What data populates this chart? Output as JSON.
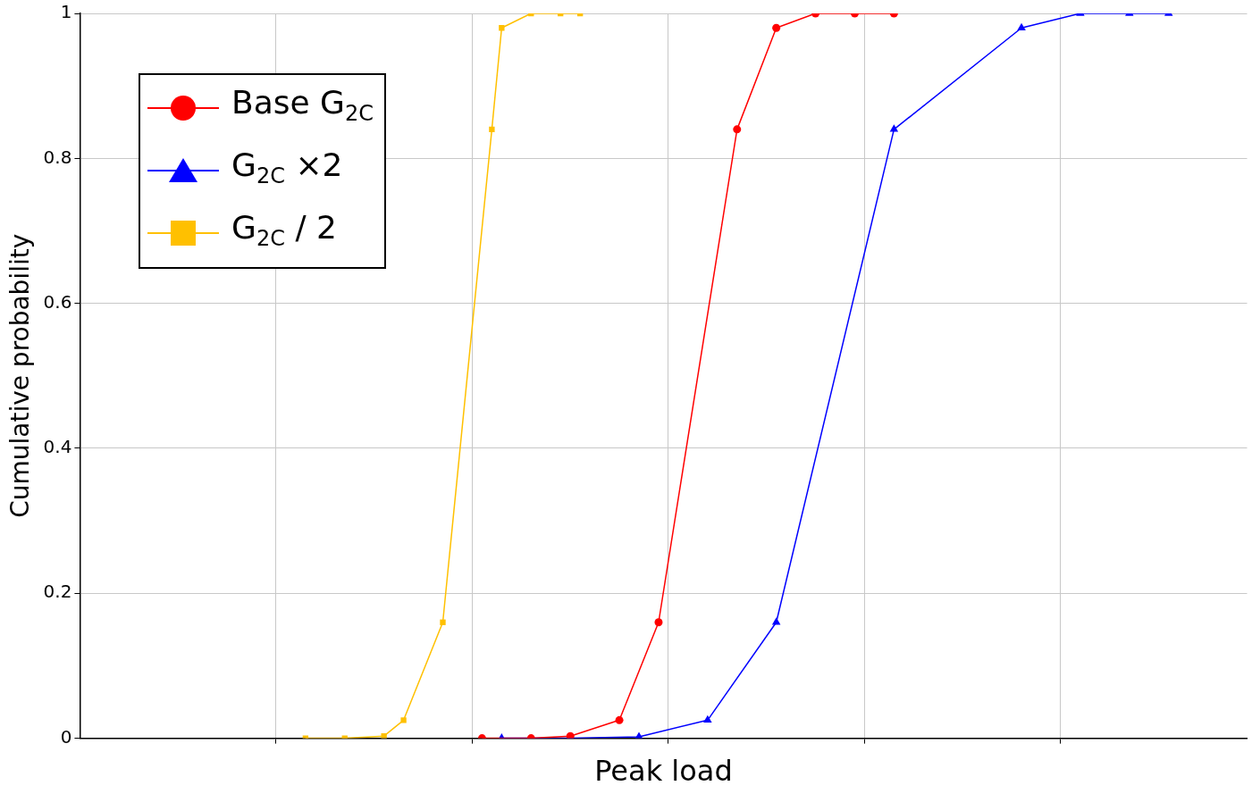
{
  "chart_data": {
    "type": "line",
    "xlabel": "Peak load",
    "ylabel": "Cumulative probability",
    "categories": [
      null,
      null,
      null,
      null,
      null,
      null,
      null,
      null,
      null,
      null,
      null,
      null,
      null,
      null,
      null,
      null,
      null,
      null,
      null,
      null,
      null,
      null,
      null,
      null,
      null,
      null,
      null,
      null,
      null,
      null,
      null,
      null,
      null,
      null,
      null,
      null,
      null,
      null,
      null,
      null,
      null,
      null,
      null,
      null,
      null,
      null,
      null,
      null,
      null,
      null,
      null,
      null,
      null,
      null,
      null,
      null,
      null,
      null,
      null,
      null,
      null,
      null,
      null,
      null,
      null,
      null,
      null,
      null,
      null,
      null,
      null,
      null,
      null,
      null,
      null,
      null,
      null,
      null,
      null,
      null,
      null,
      null,
      null,
      null,
      null,
      null,
      null,
      null,
      null,
      null,
      null,
      null,
      null,
      null,
      null,
      null,
      null,
      null,
      null,
      null,
      null,
      null,
      null,
      null,
      null,
      null,
      null,
      null,
      null,
      null,
      null,
      null,
      null,
      null,
      null,
      null,
      null,
      null,
      null,
      null
    ],
    "ylim": [
      0,
      1
    ],
    "yticks": [
      0,
      0.2,
      0.4,
      0.6,
      0.8,
      1
    ],
    "tick_labels": "y",
    "grid": true,
    "legend": "top left",
    "series": [
      {
        "name": "Base G$_{2C}$",
        "color": "#ff0000",
        "marker": "circle",
        "values": [
          null,
          null,
          null,
          null,
          null,
          null,
          null,
          null,
          null,
          null,
          null,
          null,
          null,
          null,
          null,
          null,
          null,
          null,
          null,
          null,
          null,
          null,
          null,
          null,
          null,
          null,
          null,
          null,
          null,
          null,
          null,
          null,
          null,
          null,
          null,
          null,
          null,
          null,
          null,
          null,
          null,
          0,
          null,
          null,
          null,
          null,
          0,
          null,
          null,
          null,
          0.003,
          null,
          null,
          null,
          null,
          0.025,
          null,
          null,
          null,
          0.16,
          null,
          null,
          null,
          null,
          null,
          null,
          null,
          0.84,
          null,
          null,
          null,
          0.98,
          null,
          null,
          null,
          1,
          null,
          null,
          null,
          1,
          null,
          null,
          null,
          1,
          null,
          null,
          null,
          null,
          null,
          null,
          null,
          null,
          null,
          null,
          null,
          null,
          null,
          null,
          null,
          null,
          null,
          null,
          null,
          null,
          null,
          null,
          null,
          null,
          null,
          null,
          null,
          null,
          null,
          null,
          null,
          null,
          null,
          null,
          null,
          null
        ]
      },
      {
        "name": "G$_{2C}$ ×2",
        "color": "#0000ff",
        "marker": "triangle",
        "values": [
          null,
          null,
          null,
          null,
          null,
          null,
          null,
          null,
          null,
          null,
          null,
          null,
          null,
          null,
          null,
          null,
          null,
          null,
          null,
          null,
          null,
          null,
          null,
          null,
          null,
          null,
          null,
          null,
          null,
          null,
          null,
          null,
          null,
          null,
          null,
          null,
          null,
          null,
          null,
          null,
          null,
          null,
          null,
          0,
          null,
          null,
          null,
          null,
          null,
          null,
          0,
          null,
          null,
          null,
          null,
          null,
          null,
          0.002,
          null,
          null,
          null,
          null,
          null,
          null,
          0.025,
          null,
          null,
          null,
          null,
          null,
          null,
          0.16,
          null,
          null,
          null,
          null,
          null,
          null,
          null,
          null,
          null,
          null,
          null,
          0.84,
          null,
          null,
          null,
          null,
          null,
          null,
          null,
          null,
          null,
          null,
          null,
          null,
          0.98,
          null,
          null,
          null,
          null,
          null,
          1,
          null,
          null,
          null,
          null,
          1,
          null,
          null,
          null,
          1,
          null,
          null,
          null,
          null,
          null,
          null,
          null,
          null
        ]
      },
      {
        "name": "G$_{2C}$ / 2",
        "color": "#ffc000",
        "marker": "square",
        "values": [
          null,
          null,
          null,
          null,
          null,
          null,
          null,
          null,
          null,
          null,
          null,
          null,
          null,
          null,
          null,
          null,
          null,
          null,
          null,
          null,
          null,
          null,
          null,
          0,
          null,
          null,
          null,
          0,
          null,
          null,
          null,
          0.003,
          null,
          0.025,
          null,
          null,
          null,
          0.16,
          null,
          null,
          null,
          null,
          0.84,
          0.98,
          null,
          null,
          1,
          null,
          null,
          1,
          null,
          1,
          null,
          null,
          null,
          null,
          null,
          null,
          null,
          null,
          null,
          null,
          null,
          null,
          null,
          null,
          null,
          null,
          null,
          null,
          null,
          null,
          null,
          null,
          null,
          null,
          null,
          null,
          null,
          null,
          null,
          null,
          null,
          null,
          null,
          null,
          null,
          null,
          null,
          null,
          null,
          null,
          null,
          null,
          null,
          null,
          null,
          null,
          null,
          null,
          null,
          null,
          null,
          null,
          null,
          null,
          null,
          null,
          null,
          null,
          null,
          null,
          null,
          null,
          null,
          null,
          null,
          null,
          null,
          null
        ]
      }
    ]
  }
}
